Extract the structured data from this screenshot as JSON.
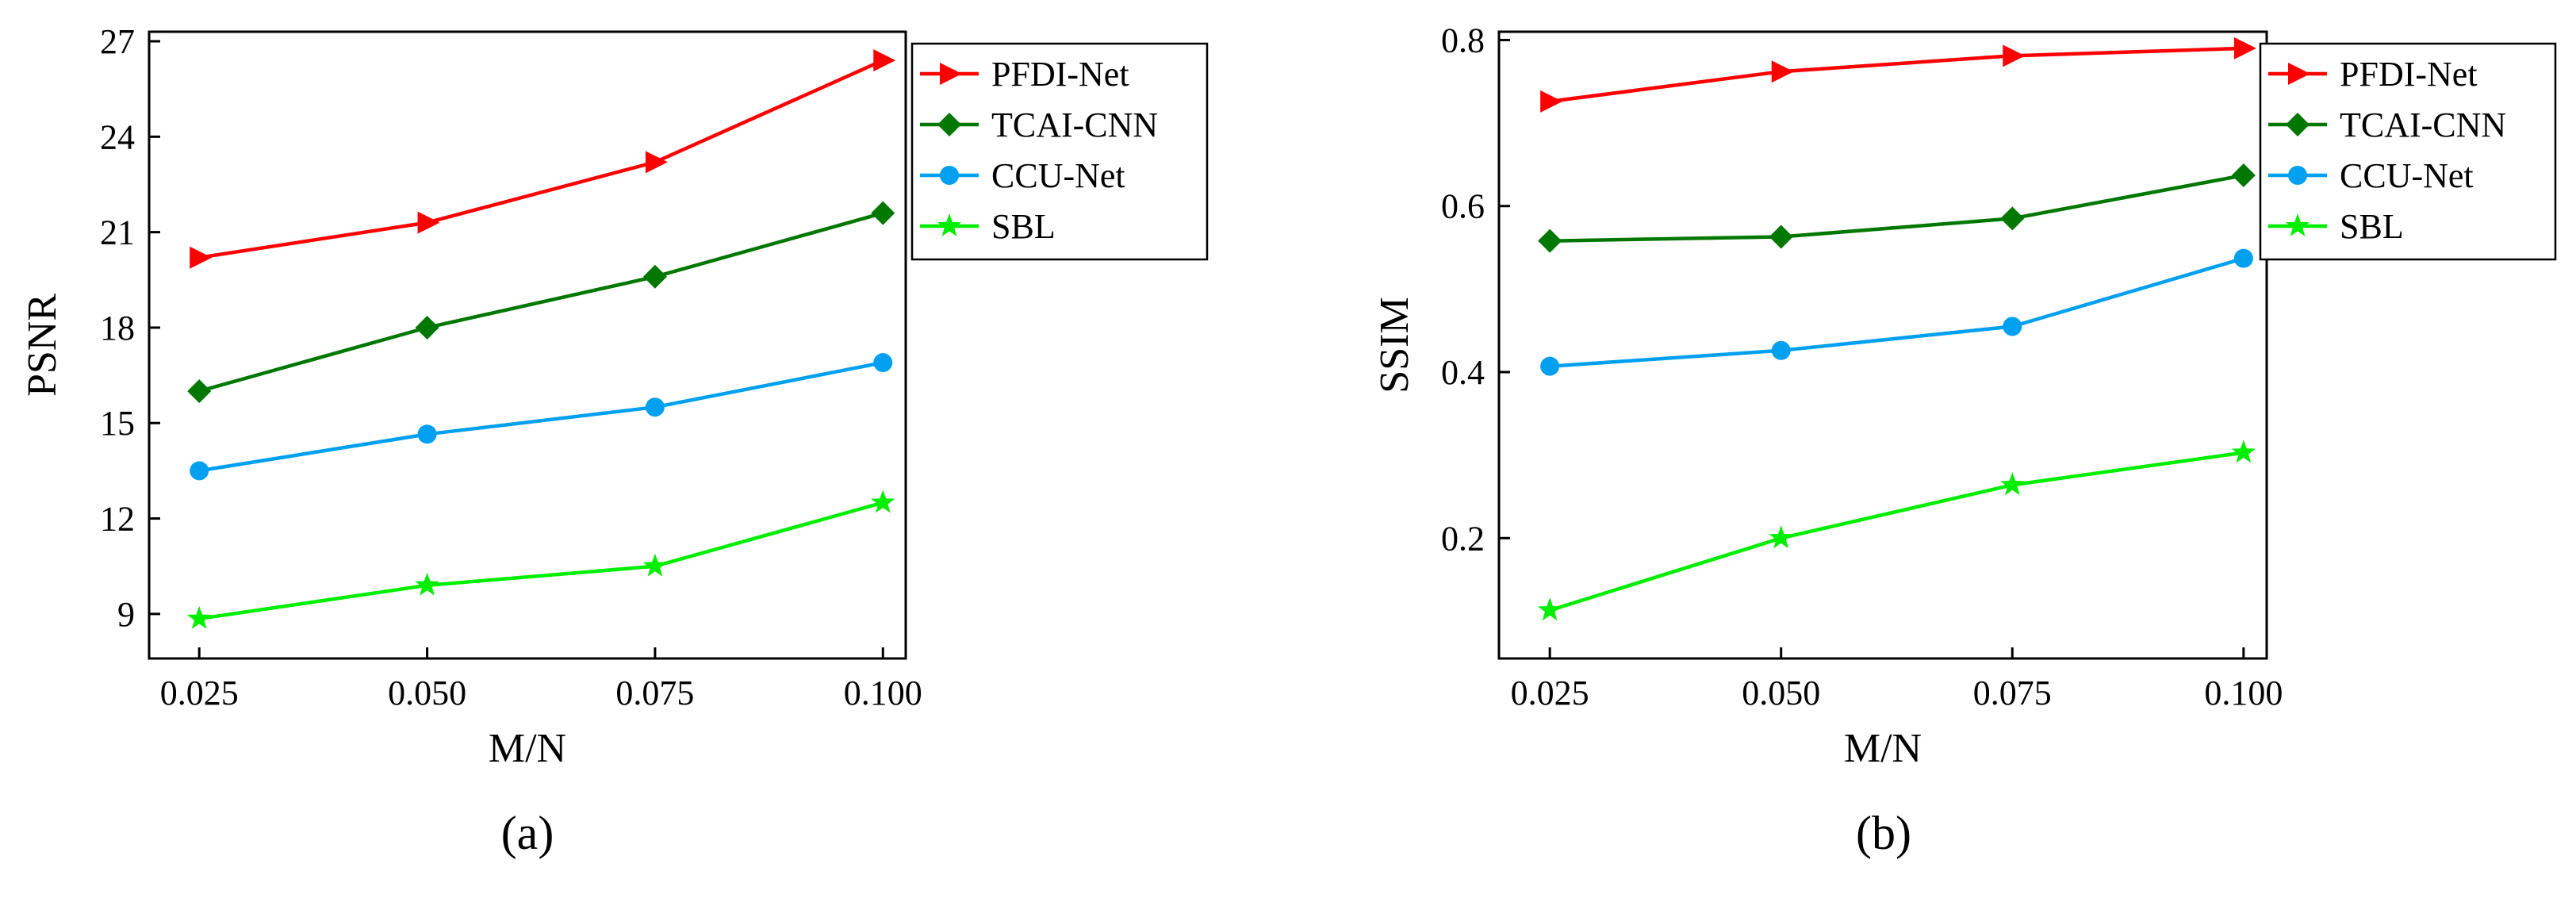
{
  "chart_data": [
    {
      "type": "line",
      "panel_label": "(a)",
      "xlabel": "M/N",
      "ylabel": "PSNR",
      "x": [
        0.025,
        0.05,
        0.075,
        0.1
      ],
      "x_tick_labels": [
        "0.025",
        "0.050",
        "0.075",
        "0.100"
      ],
      "xlim": [
        0.0195,
        0.1025
      ],
      "ylim": [
        7.6,
        27.3
      ],
      "y_ticks": [
        9,
        12,
        15,
        18,
        21,
        24,
        27
      ],
      "y_tick_labels": [
        "9",
        "12",
        "15",
        "18",
        "21",
        "24",
        "27"
      ],
      "legend_position": "top-right",
      "grid": false,
      "series": [
        {
          "name": "PFDI-Net",
          "color": "#ff0000",
          "marker": "triangle-right",
          "values": [
            20.2,
            21.3,
            23.2,
            26.4
          ]
        },
        {
          "name": "TCAI-CNN",
          "color": "#007800",
          "marker": "diamond",
          "values": [
            16.0,
            18.0,
            19.6,
            21.6
          ]
        },
        {
          "name": "CCU-Net",
          "color": "#00a0f0",
          "marker": "circle",
          "values": [
            13.5,
            14.65,
            15.5,
            16.9
          ]
        },
        {
          "name": "SBL",
          "color": "#00ee00",
          "marker": "star",
          "values": [
            8.85,
            9.9,
            10.5,
            12.5
          ]
        }
      ]
    },
    {
      "type": "line",
      "panel_label": "(b)",
      "xlabel": "M/N",
      "ylabel": "SSIM",
      "x": [
        0.025,
        0.05,
        0.075,
        0.1
      ],
      "x_tick_labels": [
        "0.025",
        "0.050",
        "0.075",
        "0.100"
      ],
      "xlim": [
        0.0195,
        0.1025
      ],
      "ylim": [
        0.055,
        0.81
      ],
      "y_ticks": [
        0.2,
        0.4,
        0.6,
        0.8
      ],
      "y_tick_labels": [
        "0.2",
        "0.4",
        "0.6",
        "0.8"
      ],
      "legend_position": "top-right",
      "grid": false,
      "series": [
        {
          "name": "PFDI-Net",
          "color": "#ff0000",
          "marker": "triangle-right",
          "values": [
            0.726,
            0.762,
            0.781,
            0.79
          ]
        },
        {
          "name": "TCAI-CNN",
          "color": "#007800",
          "marker": "diamond",
          "values": [
            0.558,
            0.563,
            0.585,
            0.637
          ]
        },
        {
          "name": "CCU-Net",
          "color": "#00a0f0",
          "marker": "circle",
          "values": [
            0.407,
            0.426,
            0.455,
            0.537
          ]
        },
        {
          "name": "SBL",
          "color": "#00ee00",
          "marker": "star",
          "values": [
            0.113,
            0.2,
            0.264,
            0.303
          ]
        }
      ]
    }
  ]
}
